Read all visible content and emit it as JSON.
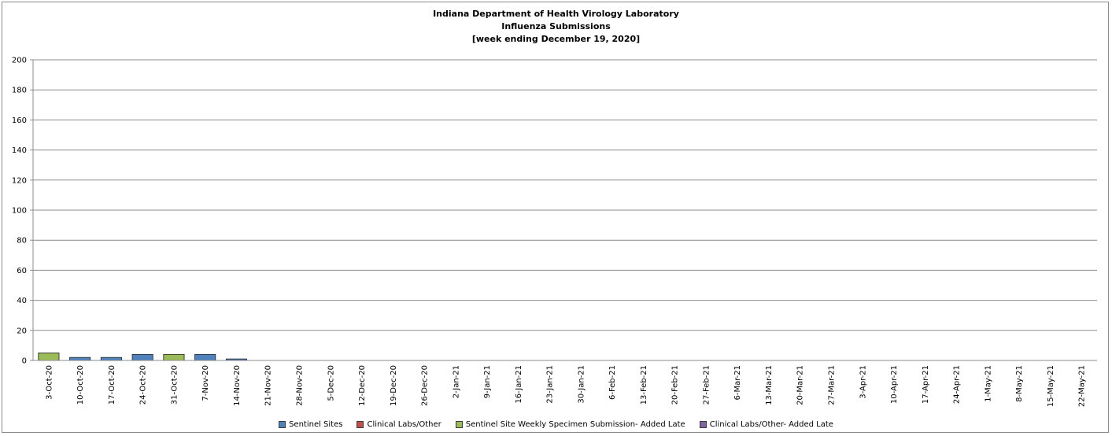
{
  "chart_data": {
    "type": "bar",
    "title": [
      "Indiana Department of Health Virology Laboratory",
      "Influenza Submissions",
      "[week ending December 19, 2020]"
    ],
    "xlabel": "",
    "ylabel": "",
    "ylim": [
      0,
      200
    ],
    "yticks": [
      0,
      20,
      40,
      60,
      80,
      100,
      120,
      140,
      160,
      180,
      200
    ],
    "grid": true,
    "legend_position": "bottom",
    "stacked": true,
    "categories": [
      "3-Oct-20",
      "10-Oct-20",
      "17-Oct-20",
      "24-Oct-20",
      "31-Oct-20",
      "7-Nov-20",
      "14-Nov-20",
      "21-Nov-20",
      "28-Nov-20",
      "5-Dec-20",
      "12-Dec-20",
      "19-Dec-20",
      "26-Dec-20",
      "2-Jan-21",
      "9-Jan-21",
      "16-Jan-21",
      "23-Jan-21",
      "30-Jan-21",
      "6-Feb-21",
      "13-Feb-21",
      "20-Feb-21",
      "27-Feb-21",
      "6-Mar-21",
      "13-Mar-21",
      "20-Mar-21",
      "27-Mar-21",
      "3-Apr-21",
      "10-Apr-21",
      "17-Apr-21",
      "24-Apr-21",
      "1-May-21",
      "8-May-21",
      "15-May-21",
      "22-May-21"
    ],
    "series": [
      {
        "name": "Sentinel Sites",
        "color": "#4f81bd",
        "values": [
          0,
          2,
          2,
          4,
          0,
          4,
          1,
          0,
          0,
          0,
          0,
          0,
          0,
          0,
          0,
          0,
          0,
          0,
          0,
          0,
          0,
          0,
          0,
          0,
          0,
          0,
          0,
          0,
          0,
          0,
          0,
          0,
          0,
          0
        ]
      },
      {
        "name": "Clinical Labs/Other",
        "color": "#c0504d",
        "values": [
          0,
          0,
          0,
          0,
          0,
          0,
          0,
          0,
          0,
          0,
          0,
          0,
          0,
          0,
          0,
          0,
          0,
          0,
          0,
          0,
          0,
          0,
          0,
          0,
          0,
          0,
          0,
          0,
          0,
          0,
          0,
          0,
          0,
          0
        ]
      },
      {
        "name": "Sentinel Site Weekly Specimen Submission- Added Late",
        "color": "#9bbb59",
        "values": [
          5,
          0,
          0,
          0,
          4,
          0,
          0,
          0,
          0,
          0,
          0,
          0,
          0,
          0,
          0,
          0,
          0,
          0,
          0,
          0,
          0,
          0,
          0,
          0,
          0,
          0,
          0,
          0,
          0,
          0,
          0,
          0,
          0,
          0
        ]
      },
      {
        "name": "Clinical Labs/Other- Added Late",
        "color": "#8064a2",
        "values": [
          0,
          0,
          0,
          0,
          0,
          0,
          0,
          0,
          0,
          0,
          0,
          0,
          0,
          0,
          0,
          0,
          0,
          0,
          0,
          0,
          0,
          0,
          0,
          0,
          0,
          0,
          0,
          0,
          0,
          0,
          0,
          0,
          0,
          0
        ]
      }
    ]
  }
}
